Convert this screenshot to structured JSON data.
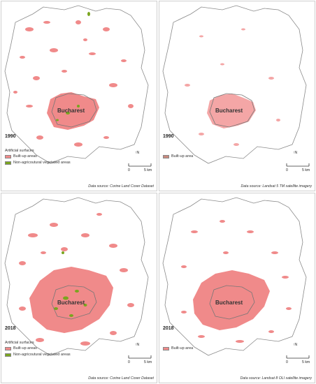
{
  "panels": [
    {
      "year": "1990",
      "city": "Bucharest",
      "legend_title": "Artificial surfaces",
      "legend": [
        {
          "label": "Built-up areas",
          "color": "#f08a8a"
        },
        {
          "label": "Non-agricoutural vegetated areas",
          "color": "#7aa51f"
        }
      ],
      "source": "Data source: Corine Land Cover Dataset",
      "scale_zero": "0",
      "scale_end": "5 km",
      "north": "N",
      "has_vegetation": true
    },
    {
      "year": "1990",
      "city": "Bucharest",
      "legend_title": "",
      "legend": [
        {
          "label": "Built-up area",
          "color": "#c98a7e"
        }
      ],
      "source": "Data source: Landsat 5 TM satellite imagery",
      "scale_zero": "0",
      "scale_end": "5 km",
      "north": "N",
      "has_vegetation": false
    },
    {
      "year": "2018",
      "city": "Bucharest",
      "legend_title": "Artificial surfaces",
      "legend": [
        {
          "label": "Built-up areas",
          "color": "#f08a8a"
        },
        {
          "label": "Non-agricoutural vegetated areas",
          "color": "#7aa51f"
        }
      ],
      "source": "Data source: Corine Land Cover Dataset",
      "scale_zero": "0",
      "scale_end": "5 km",
      "north": "N",
      "has_vegetation": true
    },
    {
      "year": "2018",
      "city": "Bucharest",
      "legend_title": "",
      "legend": [
        {
          "label": "Built-up area",
          "color": "#f08a8a"
        }
      ],
      "source": "Data source: Landsat 8 OLI satellite imagery",
      "scale_zero": "0",
      "scale_end": "5 km",
      "north": "N",
      "has_vegetation": false
    }
  ],
  "colors": {
    "built_up": "#f08a8a",
    "vegetated": "#7aa51f",
    "region_fill": "#ffffff",
    "outline": "#888888",
    "city_boundary": "#777777"
  }
}
